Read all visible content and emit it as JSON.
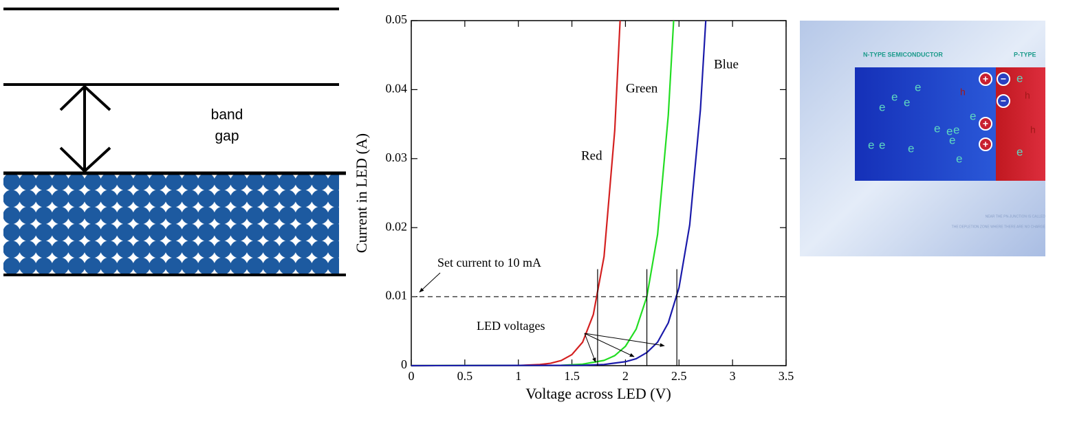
{
  "band_diagram": {
    "label_lines": [
      "band",
      "gap"
    ]
  },
  "chart_data": {
    "type": "line",
    "xlabel": "Voltage across LED (V)",
    "ylabel": "Current in LED (A)",
    "xlim": [
      0,
      3.5
    ],
    "ylim": [
      0,
      0.05
    ],
    "xticks": [
      0,
      0.5,
      1,
      1.5,
      2,
      2.5,
      3,
      3.5
    ],
    "yticks": [
      0,
      0.01,
      0.02,
      0.03,
      0.04,
      0.05
    ],
    "series": [
      {
        "name": "Red",
        "color": "#d42020",
        "x": [
          0,
          1.0,
          1.2,
          1.3,
          1.4,
          1.5,
          1.6,
          1.7,
          1.8,
          1.9,
          1.95
        ],
        "values": [
          0,
          3e-05,
          0.00016,
          0.00034,
          0.00074,
          0.0016,
          0.0034,
          0.0074,
          0.0158,
          0.0341,
          0.05
        ]
      },
      {
        "name": "Green",
        "color": "#22dd22",
        "x": [
          0,
          1.4,
          1.6,
          1.8,
          1.9,
          2.0,
          2.1,
          2.2,
          2.3,
          2.4,
          2.45
        ],
        "values": [
          0,
          5.8e-05,
          0.00021,
          0.00076,
          0.00145,
          0.0028,
          0.0053,
          0.01,
          0.019,
          0.0363,
          0.05
        ]
      },
      {
        "name": "Blue",
        "color": "#1a1aaa",
        "x": [
          0,
          1.6,
          1.8,
          2.0,
          2.1,
          2.2,
          2.3,
          2.4,
          2.5,
          2.6,
          2.7,
          2.75
        ],
        "values": [
          0,
          5.3e-05,
          0.00017,
          0.00057,
          0.001,
          0.0019,
          0.0034,
          0.0062,
          0.0113,
          0.0204,
          0.0371,
          0.05
        ]
      }
    ],
    "reference_line": {
      "y": 0.01,
      "style": "dashed"
    },
    "led_voltages": [
      1.74,
      2.2,
      2.48
    ],
    "annotations": [
      "Set current to 10 mA",
      "LED voltages"
    ]
  },
  "pn_junction": {
    "n_label": "N-TYPE SEMICONDUCTOR",
    "p_label": "P-TYPE",
    "electron": "e",
    "hole": "h",
    "plus": "+",
    "minus": "−",
    "caption": [
      "NEAR THE PN-JUNCTION IS CALLED",
      "THE DEPLETION ZONE WHERE THERE ARE NO CHARGE"
    ]
  }
}
